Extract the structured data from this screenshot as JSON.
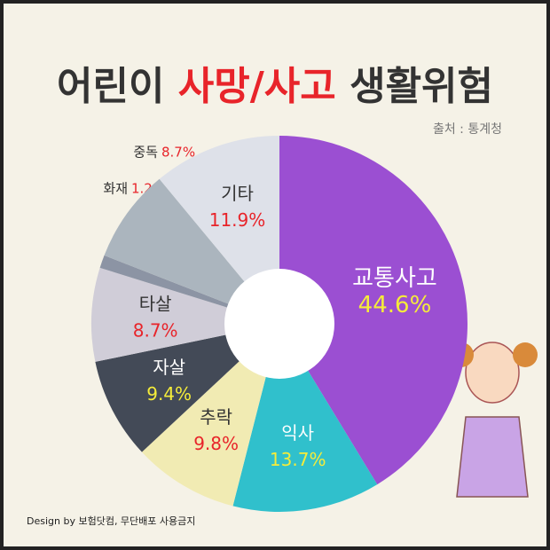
{
  "chart_data": {
    "type": "donut",
    "title": {
      "prefix": "어린이",
      "highlight": "사망/사고",
      "suffix": "생활위험"
    },
    "source": "출처 : 통계청",
    "footer": "Design by 보험닷컴, 무단배포 사용금지",
    "categories": [
      "교통사고",
      "익사",
      "추락",
      "자살",
      "타살",
      "화재",
      "중독",
      "기타"
    ],
    "values": [
      44.6,
      13.7,
      9.8,
      9.4,
      8.7,
      1.2,
      8.7,
      11.9
    ],
    "value_labels": [
      "44.6%",
      "13.7%",
      "9.8%",
      "9.4%",
      "8.7%",
      "1.2%",
      "8.7%",
      "11.9%"
    ],
    "colors": [
      "#9b4fd2",
      "#30c0cc",
      "#f1ebb3",
      "#434a57",
      "#d0cdd8",
      "#8c94a4",
      "#abb5be",
      "#dee1e9"
    ]
  }
}
